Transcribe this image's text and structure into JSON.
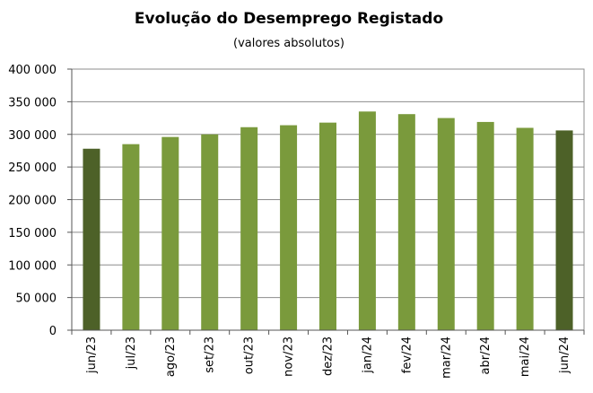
{
  "chart_data": {
    "type": "bar",
    "title": "Evolução do Desemprego Registado",
    "subtitle": "(valores absolutos)",
    "xlabel": "",
    "ylabel": "",
    "categories": [
      "jun/23",
      "jul/23",
      "ago/23",
      "set/23",
      "out/23",
      "nov/23",
      "dez/23",
      "jan/24",
      "fev/24",
      "mar/24",
      "abr/24",
      "mai/24",
      "jun/24"
    ],
    "values": [
      278000,
      285000,
      296000,
      300000,
      311000,
      314000,
      318000,
      335000,
      331000,
      325000,
      319000,
      310000,
      306000
    ],
    "ylim": [
      0,
      400000
    ],
    "yticks": [
      0,
      50000,
      100000,
      150000,
      200000,
      250000,
      300000,
      350000,
      400000
    ],
    "ytick_labels": [
      "0",
      "50 000",
      "100 000",
      "150 000",
      "200 000",
      "250 000",
      "300 000",
      "350 000",
      "400 000"
    ],
    "grid": true,
    "legend": "none",
    "colors": {
      "bar": "#7a9a3c",
      "bar_highlight": "#4d6128",
      "grid": "#8c8c8c",
      "axis": "#555555",
      "text": "#000000"
    },
    "highlight_indices": [
      0,
      12
    ]
  }
}
